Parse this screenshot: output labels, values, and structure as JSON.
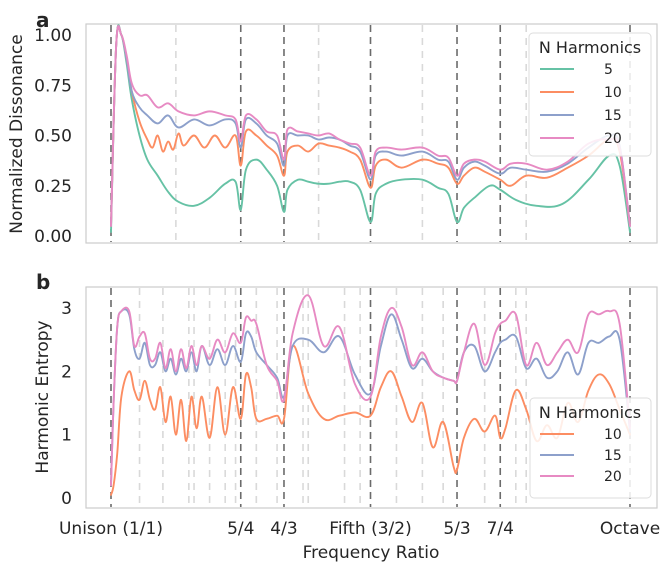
{
  "chart_data": [
    {
      "panel_label": "a",
      "type": "line",
      "ylabel": "Normalized Dissonance",
      "xlim": [
        1.0,
        2.0
      ],
      "ylim": [
        -0.03,
        1.1
      ],
      "yticks": [
        0.0,
        0.25,
        0.5,
        0.75,
        1.0
      ],
      "ytick_labels": [
        "0.00",
        "0.25",
        "0.50",
        "0.75",
        "1.00"
      ],
      "grid": false,
      "legend": {
        "title": "N Harmonics",
        "placement": "top-right"
      },
      "dark_ratio_lines": [
        1.0,
        1.25,
        1.3333,
        1.5,
        1.6667,
        1.75,
        2.0
      ],
      "light_ratio_lines": [
        1.125,
        1.4,
        1.6,
        1.8
      ],
      "series": [
        {
          "name": "5",
          "color": "#66c2a5",
          "x": [
            1.0,
            1.01,
            1.02,
            1.03,
            1.04,
            1.055,
            1.07,
            1.09,
            1.11,
            1.13,
            1.16,
            1.19,
            1.22,
            1.24,
            1.25,
            1.26,
            1.28,
            1.3,
            1.32,
            1.3333,
            1.34,
            1.36,
            1.38,
            1.4,
            1.42,
            1.44,
            1.46,
            1.48,
            1.5,
            1.51,
            1.53,
            1.56,
            1.6,
            1.63,
            1.65,
            1.6667,
            1.68,
            1.7,
            1.73,
            1.75,
            1.78,
            1.82,
            1.87,
            1.92,
            1.96,
            1.98,
            2.0
          ],
          "y": [
            0.02,
            0.95,
            1.0,
            0.86,
            0.68,
            0.5,
            0.38,
            0.3,
            0.22,
            0.17,
            0.15,
            0.19,
            0.26,
            0.27,
            0.13,
            0.33,
            0.38,
            0.33,
            0.25,
            0.12,
            0.23,
            0.28,
            0.27,
            0.26,
            0.26,
            0.27,
            0.27,
            0.23,
            0.07,
            0.21,
            0.26,
            0.28,
            0.28,
            0.24,
            0.21,
            0.07,
            0.14,
            0.19,
            0.25,
            0.23,
            0.18,
            0.15,
            0.16,
            0.28,
            0.4,
            0.35,
            0.02
          ]
        },
        {
          "name": "10",
          "color": "#fc8d62",
          "x": [
            1.0,
            1.01,
            1.02,
            1.03,
            1.04,
            1.055,
            1.07,
            1.08,
            1.09,
            1.1,
            1.11,
            1.12,
            1.13,
            1.14,
            1.16,
            1.18,
            1.2,
            1.22,
            1.24,
            1.25,
            1.26,
            1.28,
            1.3,
            1.32,
            1.3333,
            1.34,
            1.36,
            1.38,
            1.4,
            1.42,
            1.44,
            1.46,
            1.48,
            1.5,
            1.51,
            1.53,
            1.56,
            1.6,
            1.63,
            1.65,
            1.6667,
            1.68,
            1.7,
            1.72,
            1.75,
            1.77,
            1.8,
            1.84,
            1.88,
            1.92,
            1.96,
            1.98,
            2.0
          ],
          "y": [
            0.05,
            0.95,
            1.0,
            0.88,
            0.72,
            0.57,
            0.48,
            0.44,
            0.5,
            0.42,
            0.47,
            0.43,
            0.51,
            0.45,
            0.5,
            0.44,
            0.5,
            0.44,
            0.5,
            0.35,
            0.52,
            0.5,
            0.45,
            0.4,
            0.3,
            0.42,
            0.45,
            0.42,
            0.46,
            0.45,
            0.44,
            0.42,
            0.38,
            0.24,
            0.35,
            0.38,
            0.34,
            0.38,
            0.36,
            0.34,
            0.26,
            0.3,
            0.34,
            0.32,
            0.28,
            0.25,
            0.3,
            0.29,
            0.34,
            0.4,
            0.48,
            0.42,
            0.05
          ]
        },
        {
          "name": "15",
          "color": "#8da0cb",
          "x": [
            1.0,
            1.01,
            1.02,
            1.03,
            1.04,
            1.055,
            1.07,
            1.09,
            1.11,
            1.13,
            1.16,
            1.19,
            1.22,
            1.24,
            1.25,
            1.26,
            1.28,
            1.3,
            1.32,
            1.3333,
            1.34,
            1.36,
            1.38,
            1.4,
            1.42,
            1.44,
            1.46,
            1.48,
            1.5,
            1.51,
            1.53,
            1.56,
            1.6,
            1.63,
            1.65,
            1.6667,
            1.68,
            1.7,
            1.72,
            1.75,
            1.77,
            1.8,
            1.84,
            1.88,
            1.92,
            1.96,
            1.98,
            2.0
          ],
          "y": [
            0.05,
            0.95,
            1.0,
            0.88,
            0.72,
            0.64,
            0.6,
            0.56,
            0.6,
            0.54,
            0.58,
            0.55,
            0.58,
            0.56,
            0.44,
            0.58,
            0.56,
            0.5,
            0.46,
            0.35,
            0.5,
            0.5,
            0.5,
            0.48,
            0.49,
            0.48,
            0.45,
            0.42,
            0.28,
            0.4,
            0.42,
            0.4,
            0.42,
            0.38,
            0.37,
            0.28,
            0.34,
            0.37,
            0.35,
            0.31,
            0.34,
            0.33,
            0.32,
            0.36,
            0.44,
            0.5,
            0.45,
            0.05
          ]
        },
        {
          "name": "20",
          "color": "#e78ac3",
          "x": [
            1.0,
            1.01,
            1.02,
            1.03,
            1.04,
            1.055,
            1.07,
            1.09,
            1.11,
            1.13,
            1.16,
            1.19,
            1.22,
            1.24,
            1.25,
            1.26,
            1.28,
            1.3,
            1.32,
            1.3333,
            1.34,
            1.36,
            1.38,
            1.4,
            1.42,
            1.44,
            1.46,
            1.48,
            1.5,
            1.51,
            1.53,
            1.56,
            1.6,
            1.63,
            1.65,
            1.6667,
            1.68,
            1.7,
            1.72,
            1.75,
            1.77,
            1.8,
            1.84,
            1.88,
            1.92,
            1.96,
            1.98,
            2.0
          ],
          "y": [
            0.05,
            0.95,
            1.0,
            0.9,
            0.76,
            0.7,
            0.7,
            0.64,
            0.66,
            0.62,
            0.6,
            0.62,
            0.6,
            0.58,
            0.47,
            0.6,
            0.58,
            0.52,
            0.5,
            0.38,
            0.53,
            0.52,
            0.51,
            0.5,
            0.51,
            0.48,
            0.46,
            0.44,
            0.3,
            0.42,
            0.44,
            0.43,
            0.44,
            0.4,
            0.39,
            0.3,
            0.36,
            0.38,
            0.37,
            0.33,
            0.36,
            0.36,
            0.33,
            0.37,
            0.46,
            0.48,
            0.44,
            0.05
          ]
        }
      ]
    },
    {
      "panel_label": "b",
      "type": "line",
      "xlabel": "Frequency Ratio",
      "ylabel": "Harmonic Entropy",
      "xlim": [
        1.0,
        2.0
      ],
      "ylim": [
        -0.15,
        3.35
      ],
      "yticks": [
        0,
        1,
        2,
        3
      ],
      "ytick_labels": [
        "0",
        "1",
        "2",
        "3"
      ],
      "grid": false,
      "legend": {
        "title": "N Harmonics",
        "placement": "bottom-right"
      },
      "xticks": [
        1.0,
        1.25,
        1.3333,
        1.5,
        1.6667,
        1.75,
        2.0
      ],
      "xtick_labels": [
        "Unison (1/1)",
        "5/4",
        "4/3",
        "Fifth (3/2)",
        "5/3",
        "7/4",
        "Octave"
      ],
      "dark_ratio_lines": [
        1.0,
        1.25,
        1.3333,
        1.5,
        1.6667,
        1.75,
        2.0
      ],
      "light_ratio_lines": [
        1.055,
        1.1,
        1.15,
        1.16,
        1.19,
        1.22,
        1.24,
        1.28,
        1.32,
        1.37,
        1.38,
        1.45,
        1.48,
        1.55,
        1.6,
        1.64,
        1.72,
        1.78,
        1.8
      ],
      "series": [
        {
          "name": "10",
          "color": "#fc8d62",
          "x": [
            1.0,
            1.005,
            1.012,
            1.02,
            1.035,
            1.045,
            1.055,
            1.065,
            1.075,
            1.085,
            1.095,
            1.105,
            1.115,
            1.125,
            1.135,
            1.145,
            1.155,
            1.165,
            1.175,
            1.19,
            1.205,
            1.22,
            1.235,
            1.25,
            1.26,
            1.27,
            1.28,
            1.3,
            1.32,
            1.3333,
            1.35,
            1.38,
            1.41,
            1.44,
            1.47,
            1.5,
            1.52,
            1.54,
            1.56,
            1.58,
            1.6,
            1.62,
            1.64,
            1.66,
            1.6667,
            1.68,
            1.7,
            1.72,
            1.74,
            1.75,
            1.76,
            1.78,
            1.8,
            1.82,
            1.84,
            1.86,
            1.88,
            1.9,
            1.92,
            1.94,
            1.96,
            1.98,
            2.0
          ],
          "y": [
            0.05,
            0.2,
            0.7,
            1.6,
            2.0,
            1.7,
            1.55,
            1.85,
            1.55,
            1.4,
            1.75,
            1.2,
            1.6,
            1.0,
            1.55,
            0.9,
            1.6,
            1.1,
            1.6,
            0.95,
            1.75,
            1.0,
            1.75,
            1.25,
            1.95,
            1.75,
            1.25,
            1.25,
            1.3,
            1.25,
            2.4,
            1.65,
            1.25,
            1.3,
            1.35,
            1.3,
            1.75,
            2.0,
            1.6,
            1.2,
            1.5,
            0.8,
            1.2,
            0.5,
            0.45,
            0.95,
            1.25,
            1.05,
            1.3,
            0.95,
            1.1,
            1.7,
            1.4,
            0.9,
            1.15,
            0.95,
            1.5,
            1.2,
            1.7,
            1.95,
            1.8,
            1.4,
            1.0
          ]
        },
        {
          "name": "15",
          "color": "#8da0cb",
          "x": [
            1.0,
            1.005,
            1.012,
            1.02,
            1.035,
            1.045,
            1.055,
            1.065,
            1.075,
            1.085,
            1.095,
            1.105,
            1.115,
            1.125,
            1.135,
            1.145,
            1.155,
            1.165,
            1.175,
            1.19,
            1.205,
            1.22,
            1.235,
            1.25,
            1.26,
            1.27,
            1.28,
            1.3,
            1.32,
            1.3333,
            1.35,
            1.38,
            1.41,
            1.44,
            1.47,
            1.5,
            1.52,
            1.54,
            1.56,
            1.58,
            1.6,
            1.62,
            1.64,
            1.66,
            1.6667,
            1.68,
            1.7,
            1.72,
            1.74,
            1.75,
            1.76,
            1.78,
            1.8,
            1.82,
            1.84,
            1.86,
            1.88,
            1.9,
            1.92,
            1.94,
            1.96,
            1.98,
            2.0
          ],
          "y": [
            0.2,
            1.5,
            2.7,
            2.95,
            2.9,
            2.35,
            2.2,
            2.45,
            2.1,
            2.1,
            2.3,
            2.0,
            2.2,
            1.95,
            2.2,
            2.0,
            2.3,
            2.0,
            2.4,
            2.1,
            2.35,
            2.1,
            2.4,
            2.15,
            2.6,
            2.55,
            2.3,
            2.1,
            1.9,
            1.6,
            2.4,
            2.5,
            2.3,
            2.55,
            1.95,
            1.65,
            2.4,
            2.9,
            2.5,
            2.05,
            2.2,
            2.0,
            1.9,
            1.85,
            1.85,
            2.3,
            2.4,
            2.0,
            2.3,
            2.45,
            2.5,
            2.55,
            2.05,
            2.2,
            1.9,
            2.0,
            2.3,
            1.95,
            2.45,
            2.45,
            2.55,
            2.5,
            1.05
          ]
        },
        {
          "name": "20",
          "color": "#e78ac3",
          "x": [
            1.0,
            1.005,
            1.012,
            1.02,
            1.035,
            1.045,
            1.055,
            1.065,
            1.075,
            1.085,
            1.095,
            1.105,
            1.115,
            1.125,
            1.135,
            1.145,
            1.155,
            1.165,
            1.175,
            1.19,
            1.205,
            1.22,
            1.235,
            1.25,
            1.26,
            1.27,
            1.28,
            1.3,
            1.32,
            1.3333,
            1.35,
            1.38,
            1.41,
            1.44,
            1.47,
            1.5,
            1.52,
            1.54,
            1.56,
            1.58,
            1.6,
            1.62,
            1.64,
            1.66,
            1.6667,
            1.68,
            1.7,
            1.72,
            1.74,
            1.75,
            1.76,
            1.78,
            1.8,
            1.82,
            1.84,
            1.86,
            1.88,
            1.9,
            1.92,
            1.94,
            1.96,
            1.98,
            2.0
          ],
          "y": [
            0.2,
            1.5,
            2.7,
            2.95,
            2.95,
            2.4,
            2.55,
            2.6,
            2.2,
            2.2,
            2.45,
            2.05,
            2.35,
            2.0,
            2.35,
            2.05,
            2.4,
            2.1,
            2.4,
            2.2,
            2.5,
            2.3,
            2.6,
            2.45,
            2.85,
            2.8,
            2.75,
            2.1,
            1.85,
            1.55,
            2.6,
            3.2,
            2.4,
            2.7,
            1.8,
            1.6,
            2.55,
            3.0,
            2.7,
            2.1,
            2.3,
            2.0,
            1.9,
            1.85,
            1.85,
            2.3,
            2.75,
            2.1,
            2.6,
            2.75,
            2.8,
            2.9,
            2.1,
            2.45,
            2.1,
            2.3,
            2.5,
            2.3,
            2.9,
            2.9,
            2.95,
            2.75,
            1.1
          ]
        }
      ]
    }
  ]
}
